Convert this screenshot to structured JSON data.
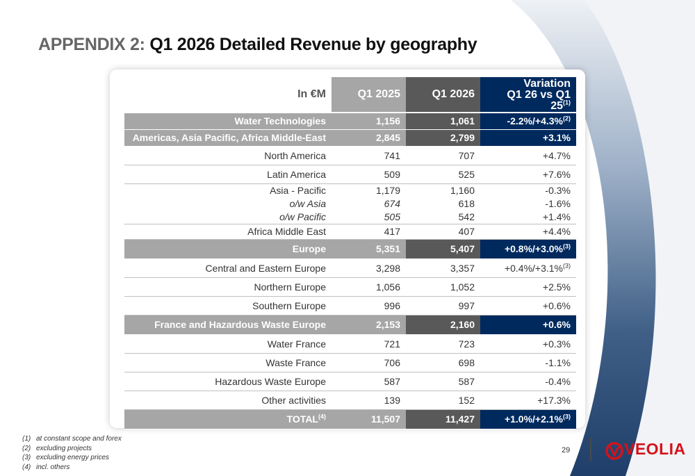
{
  "title": {
    "prefix": "APPENDIX 2:",
    "main": "Q1 2026 Detailed Revenue by geography"
  },
  "table": {
    "headers": {
      "label": "In €M",
      "q1_2025": "Q1 2025",
      "q1_2026": "Q1 2026",
      "variation_line1": "Variation",
      "variation_line2": "Q1 26 vs Q1 25",
      "variation_note": "(1)"
    },
    "rows": {
      "water_tech": {
        "label": "Water Technologies",
        "q25": "1,156",
        "q26": "1,061",
        "var": "-2.2%/+4.3%",
        "note": "(2)"
      },
      "amer": {
        "label": "Americas, Asia Pacific, Africa Middle-East",
        "q25": "2,845",
        "q26": "2,799",
        "var": "+3.1%"
      },
      "north_america": {
        "label": "North America",
        "q25": "741",
        "q26": "707",
        "var": "+4.7%"
      },
      "latin_america": {
        "label": "Latin America",
        "q25": "509",
        "q26": "525",
        "var": "+7.6%"
      },
      "asia_pacific": {
        "label": "Asia - Pacific",
        "q25": "1,179",
        "q26": "1,160",
        "var": "-0.3%"
      },
      "ow_asia": {
        "label": "o/w Asia",
        "q25": "674",
        "q26": "618",
        "var": "-1.6%"
      },
      "ow_pacific": {
        "label": "o/w Pacific",
        "q25": "505",
        "q26": "542",
        "var": "+1.4%"
      },
      "africa_me": {
        "label": "Africa Middle East",
        "q25": "417",
        "q26": "407",
        "var": "+4.4%"
      },
      "europe": {
        "label": "Europe",
        "q25": "5,351",
        "q26": "5,407",
        "var": "+0.8%/+3.0%",
        "note": "(3)"
      },
      "central_eastern": {
        "label": "Central and Eastern Europe",
        "q25": "3,298",
        "q26": "3,357",
        "var": "+0.4%/+3.1%",
        "note": "(3)"
      },
      "northern": {
        "label": "Northern Europe",
        "q25": "1,056",
        "q26": "1,052",
        "var": "+2.5%"
      },
      "southern": {
        "label": "Southern Europe",
        "q25": "996",
        "q26": "997",
        "var": "+0.6%"
      },
      "france_hw": {
        "label": "France and Hazardous Waste Europe",
        "q25": "2,153",
        "q26": "2,160",
        "var": "+0.6%"
      },
      "water_france": {
        "label": "Water France",
        "q25": "721",
        "q26": "723",
        "var": "+0.3%"
      },
      "waste_france": {
        "label": "Waste France",
        "q25": "706",
        "q26": "698",
        "var": "-1.1%"
      },
      "hazardous": {
        "label": "Hazardous Waste Europe",
        "q25": "587",
        "q26": "587",
        "var": "-0.4%"
      },
      "other": {
        "label": "Other activities",
        "q25": "139",
        "q26": "152",
        "var": "+17.3%"
      },
      "total": {
        "label": "TOTAL",
        "label_note": "(4)",
        "q25": "11,507",
        "q26": "11,427",
        "var": "+1.0%/+2.1%",
        "note": "(3)"
      }
    }
  },
  "footnotes": [
    {
      "num": "(1)",
      "text": "at constant scope and forex"
    },
    {
      "num": "(2)",
      "text": "excluding projects"
    },
    {
      "num": "(3)",
      "text": "excluding energy prices"
    },
    {
      "num": "(4)",
      "text": "incl. others"
    }
  ],
  "page_number": "29",
  "logo": {
    "text": "VEOLIA",
    "color": "#d5121b"
  },
  "colors": {
    "navy": "#002a5e",
    "dark_gray": "#595959",
    "light_gray": "#a6a6a6"
  }
}
